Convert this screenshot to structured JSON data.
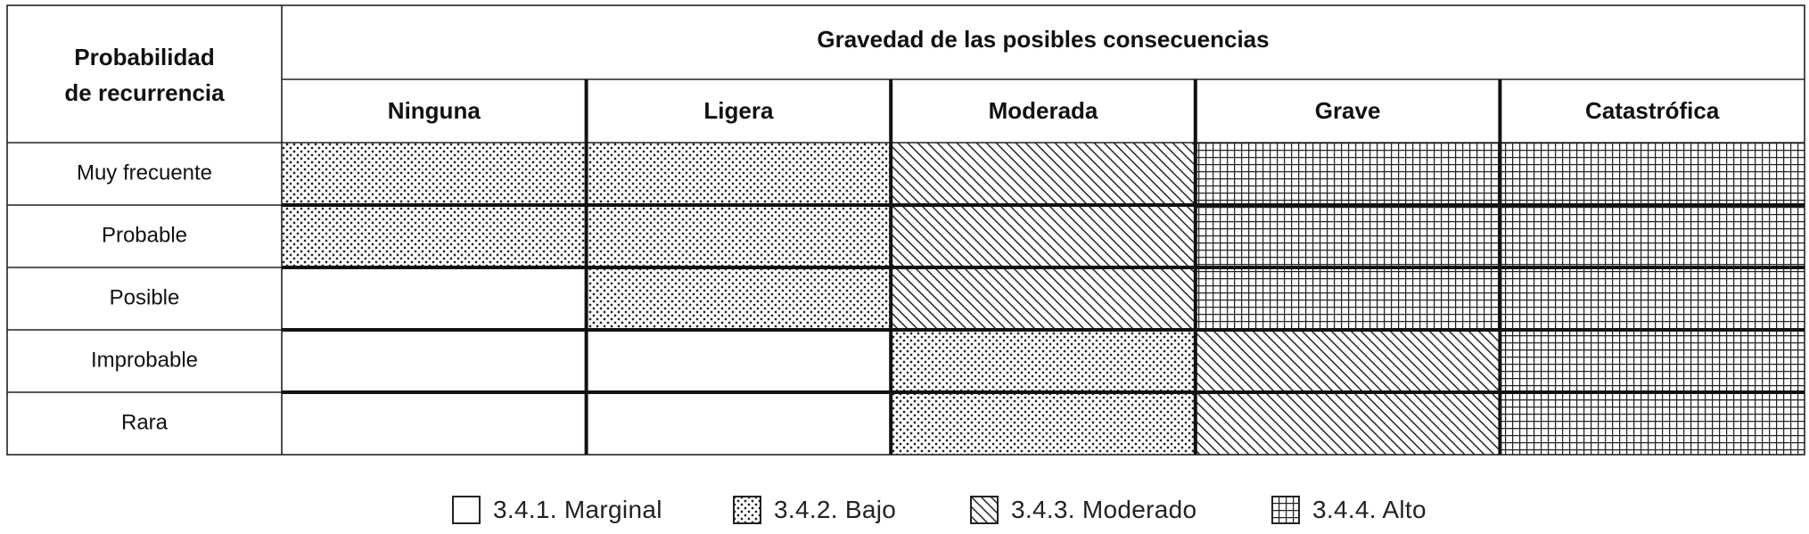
{
  "matrix": {
    "row_header": [
      "Probabilidad",
      "de recurrencia"
    ],
    "column_group_header": "Gravedad de las posibles consecuencias",
    "columns": [
      "Ninguna",
      "Ligera",
      "Moderada",
      "Grave",
      "Catastrófica"
    ],
    "rows": [
      {
        "label": "Muy frecuente",
        "levels": [
          "bajo",
          "bajo",
          "moderado",
          "alto",
          "alto"
        ]
      },
      {
        "label": "Probable",
        "levels": [
          "bajo",
          "bajo",
          "moderado",
          "alto",
          "alto"
        ]
      },
      {
        "label": "Posible",
        "levels": [
          "marginal",
          "bajo",
          "moderado",
          "alto",
          "alto"
        ]
      },
      {
        "label": "Improbable",
        "levels": [
          "marginal",
          "marginal",
          "bajo",
          "moderado",
          "alto"
        ]
      },
      {
        "label": "Rara",
        "levels": [
          "marginal",
          "marginal",
          "bajo",
          "moderado",
          "alto"
        ]
      }
    ]
  },
  "legend": [
    {
      "level": "marginal",
      "label": "3.4.1.  Marginal"
    },
    {
      "level": "bajo",
      "label": "3.4.2.  Bajo"
    },
    {
      "level": "moderado",
      "label": "3.4.3.  Moderado"
    },
    {
      "level": "alto",
      "label": "3.4.4.  Alto"
    }
  ]
}
